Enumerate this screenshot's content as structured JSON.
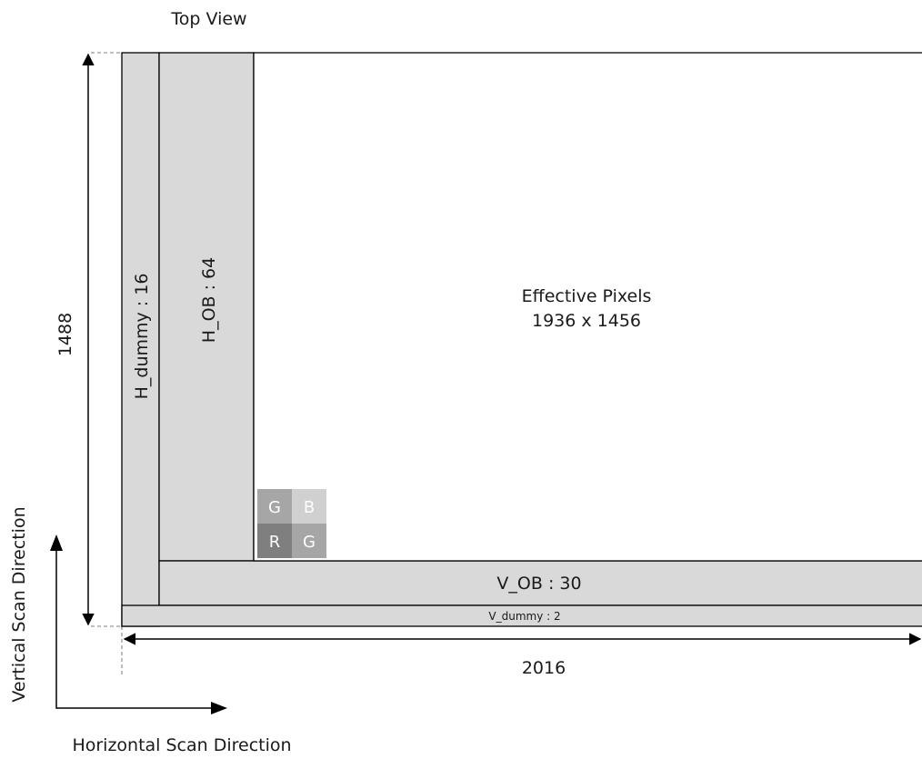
{
  "title": "Top View",
  "effective_pixels": {
    "line1": "Effective Pixels",
    "line2": "1936 x 1456"
  },
  "regions": {
    "h_dummy": "H_dummy : 16",
    "h_ob": "H_OB : 64",
    "v_ob": "V_OB : 30",
    "v_dummy": "V_dummy : 2"
  },
  "dimensions": {
    "height": "1488",
    "width": "2016"
  },
  "color_filter": {
    "top_left": "G",
    "top_right": "B",
    "bottom_left": "R",
    "bottom_right": "G"
  },
  "scan_directions": {
    "vertical": "Vertical Scan Direction",
    "horizontal": "Horizontal Scan Direction"
  },
  "colors": {
    "region_fill": "#d9d9d9",
    "g_cell": "#a6a6a6",
    "b_cell": "#d0d0d0",
    "r_cell": "#7f7f7f",
    "g2_cell": "#a6a6a6",
    "stroke": "#000000"
  }
}
